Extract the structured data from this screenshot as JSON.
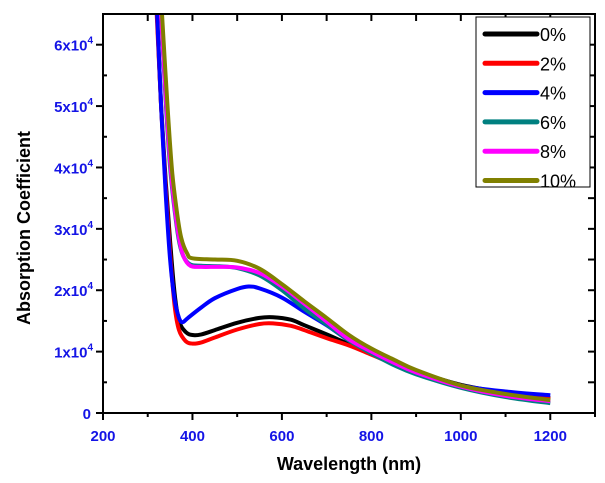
{
  "chart_data": {
    "type": "line",
    "title": "",
    "xlabel": "Wavelength (nm)",
    "ylabel": "Absorption Coefficient",
    "xlim": [
      200,
      1300
    ],
    "ylim": [
      0,
      65000
    ],
    "x_ticks": [
      200,
      400,
      600,
      800,
      1000,
      1200
    ],
    "x_tick_labels": [
      "200",
      "400",
      "600",
      "800",
      "1000",
      "1200"
    ],
    "y_ticks": [
      0,
      10000,
      20000,
      30000,
      40000,
      50000,
      60000
    ],
    "y_tick_labels": [
      {
        "base": "0",
        "exp": ""
      },
      {
        "base": "1x10",
        "exp": "4"
      },
      {
        "base": "2x10",
        "exp": "4"
      },
      {
        "base": "3x10",
        "exp": "4"
      },
      {
        "base": "4x10",
        "exp": "4"
      },
      {
        "base": "5x10",
        "exp": "4"
      },
      {
        "base": "6x10",
        "exp": "4"
      }
    ],
    "grid": false,
    "legend_position": "top-right",
    "series": [
      {
        "name": "0%",
        "color": "#000000",
        "x": [
          321,
          330,
          340,
          350,
          360,
          370,
          385,
          400,
          420,
          450,
          500,
          550,
          580,
          620,
          650,
          700,
          750,
          800,
          850,
          900,
          1000,
          1100,
          1200
        ],
        "y": [
          65000,
          50000,
          38000,
          28000,
          19500,
          15000,
          13200,
          12700,
          12800,
          13500,
          14700,
          15500,
          15600,
          15200,
          14300,
          12800,
          11200,
          9600,
          8200,
          6800,
          4600,
          3300,
          2400
        ]
      },
      {
        "name": "2%",
        "color": "#ff0000",
        "x": [
          320,
          330,
          340,
          350,
          360,
          370,
          385,
          400,
          420,
          450,
          500,
          550,
          580,
          620,
          650,
          700,
          750,
          800,
          850,
          900,
          1000,
          1100,
          1200
        ],
        "y": [
          65000,
          50000,
          37000,
          26000,
          17500,
          13500,
          11700,
          11300,
          11500,
          12300,
          13600,
          14500,
          14600,
          14200,
          13500,
          12200,
          11000,
          9500,
          8000,
          6600,
          4500,
          3200,
          2300
        ]
      },
      {
        "name": "4%",
        "color": "#0000ff",
        "x": [
          321,
          330,
          340,
          350,
          360,
          370,
          378,
          390,
          420,
          450,
          500,
          525,
          550,
          600,
          650,
          700,
          750,
          800,
          850,
          900,
          1000,
          1100,
          1200
        ],
        "y": [
          65000,
          50000,
          36000,
          25000,
          18500,
          15500,
          14800,
          15500,
          17200,
          18700,
          20200,
          20600,
          20300,
          18800,
          16500,
          14300,
          11800,
          9800,
          8000,
          6600,
          4500,
          3500,
          2900
        ]
      },
      {
        "name": "6%",
        "color": "#008080",
        "x": [
          330,
          340,
          350,
          360,
          370,
          380,
          395,
          420,
          460,
          500,
          550,
          600,
          650,
          700,
          750,
          800,
          850,
          900,
          1000,
          1100,
          1200
        ],
        "y": [
          65000,
          51000,
          40000,
          33000,
          28000,
          25500,
          24200,
          24000,
          23900,
          23600,
          22400,
          20000,
          17000,
          14400,
          11800,
          9700,
          7800,
          6300,
          4100,
          2600,
          1600
        ]
      },
      {
        "name": "8%",
        "color": "#ff00ff",
        "x": [
          330,
          340,
          350,
          360,
          370,
          380,
          395,
          420,
          460,
          500,
          550,
          600,
          650,
          700,
          750,
          800,
          850,
          900,
          1000,
          1100,
          1200
        ],
        "y": [
          65000,
          52000,
          41000,
          33500,
          28500,
          25500,
          24000,
          23800,
          23800,
          23700,
          22800,
          20600,
          17800,
          14900,
          12000,
          10000,
          8200,
          6600,
          4300,
          2800,
          1900
        ]
      },
      {
        "name": "10%",
        "color": "#808000",
        "x": [
          332,
          345,
          355,
          366,
          375,
          388,
          400,
          450,
          500,
          550,
          600,
          650,
          700,
          750,
          800,
          850,
          900,
          1000,
          1100,
          1200
        ],
        "y": [
          65000,
          49000,
          39000,
          32400,
          28500,
          26000,
          25200,
          25000,
          24800,
          23500,
          21000,
          18200,
          15500,
          12700,
          10500,
          8700,
          7000,
          4500,
          3100,
          2100
        ]
      }
    ]
  }
}
